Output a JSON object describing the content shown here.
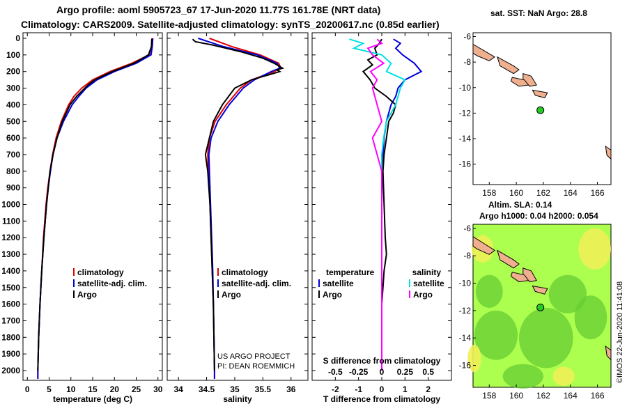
{
  "header": {
    "line1": "Argo profile: aoml 5905723_67 17-Jun-2020 11.77S 161.78E (NRT data)",
    "line2": "Climatology: CARS2009. Satellite-adjusted climatology: synTS_20200617.nc (0.85d earlier)"
  },
  "colors": {
    "clim": "#e00000",
    "sat": "#0000dd",
    "argo": "#000000",
    "sat_s": "#00e0e0",
    "argo_s": "#ff00ff",
    "map_sea": "#adff4f",
    "land": "#f0b090",
    "dot": "#22cc22"
  },
  "depth_ticks": [
    "0",
    "100",
    "200",
    "300",
    "400",
    "500",
    "600",
    "700",
    "800",
    "900",
    "1000",
    "1100",
    "1200",
    "1300",
    "1400",
    "1500",
    "1600",
    "1700",
    "1800",
    "1900",
    "2000"
  ],
  "credits": {
    "line1": "US ARGO PROJECT",
    "line2": "PI: DEAN ROEMMICH"
  },
  "sst_map": {
    "title": "sat. SST: NaN Argo: 28.8"
  },
  "sla_map": {
    "title1": "Altim. SLA: 0.14",
    "title2": "Argo h1000: 0.04 h2000: 0.054"
  },
  "map_axes": {
    "lat_ticks": [
      "-6",
      "-8",
      "-10",
      "-12",
      "-14",
      "-16"
    ],
    "lon_ticks": [
      "158",
      "160",
      "162",
      "164",
      "166"
    ]
  },
  "watermark": "©IMOS 22-Jun-2020 11:41:08",
  "chart_data": [
    {
      "type": "line",
      "name": "temperature",
      "xlabel": "temperature (deg C)",
      "xlim": [
        -1,
        31
      ],
      "ylim": [
        2100,
        0
      ],
      "xticks": [
        "0",
        "5",
        "10",
        "15",
        "20",
        "25",
        "30"
      ],
      "legend": [
        "climatology",
        "satellite-adj. clim.",
        "Argo"
      ],
      "series": [
        {
          "name": "climatology",
          "depth": [
            0,
            50,
            100,
            150,
            200,
            250,
            300,
            350,
            400,
            500,
            600,
            700,
            800,
            900,
            1000,
            1200,
            1400,
            1600,
            1800,
            2000,
            2050
          ],
          "values": [
            28.6,
            28.5,
            28.0,
            24.0,
            19.0,
            15.0,
            12.5,
            10.7,
            9.5,
            7.8,
            6.6,
            5.8,
            5.2,
            4.7,
            4.3,
            3.7,
            3.3,
            2.9,
            2.6,
            2.4,
            2.4
          ]
        },
        {
          "name": "satellite-adj. clim.",
          "depth": [
            0,
            50,
            100,
            150,
            200,
            250,
            300,
            350,
            400,
            500,
            600,
            700,
            800,
            900,
            1000,
            1200,
            1400,
            1600,
            1800,
            2000,
            2050
          ],
          "values": [
            28.8,
            28.7,
            28.4,
            25.0,
            20.0,
            16.0,
            13.5,
            11.8,
            10.3,
            8.3,
            6.8,
            5.9,
            5.3,
            4.8,
            4.4,
            3.8,
            3.3,
            2.9,
            2.6,
            2.4,
            2.4
          ]
        },
        {
          "name": "Argo",
          "depth": [
            5,
            50,
            100,
            150,
            200,
            250,
            280,
            300,
            350,
            400,
            500,
            600,
            700,
            800,
            900,
            1000,
            1200,
            1400,
            1600,
            1800,
            2000
          ],
          "values": [
            28.6,
            28.5,
            27.8,
            24.5,
            19.5,
            15.5,
            14.0,
            13.2,
            11.3,
            9.8,
            8.0,
            6.8,
            5.9,
            5.2,
            4.8,
            4.4,
            3.8,
            3.3,
            2.9,
            2.6,
            2.4
          ]
        }
      ]
    },
    {
      "type": "line",
      "name": "salinity",
      "xlabel": "salinity",
      "xlim": [
        33.8,
        36.3
      ],
      "ylim": [
        2100,
        0
      ],
      "xticks": [
        "34",
        "34.5",
        "35",
        "35.5",
        "36"
      ],
      "legend": [
        "climatology",
        "satellite-adj. clim.",
        "Argo"
      ],
      "series": [
        {
          "name": "climatology",
          "depth": [
            0,
            50,
            100,
            150,
            180,
            200,
            250,
            300,
            400,
            500,
            600,
            700,
            800,
            1000,
            1200,
            1400,
            1600,
            1800,
            2000,
            2050
          ],
          "values": [
            34.55,
            34.95,
            35.45,
            35.78,
            35.82,
            35.7,
            35.3,
            35.1,
            34.85,
            34.65,
            34.55,
            34.52,
            34.53,
            34.56,
            34.58,
            34.6,
            34.62,
            34.63,
            34.64,
            34.64
          ]
        },
        {
          "name": "satellite-adj. clim.",
          "depth": [
            0,
            50,
            100,
            150,
            180,
            200,
            250,
            300,
            400,
            500,
            600,
            700,
            800,
            1000,
            1200,
            1400,
            1600,
            1800,
            2000,
            2050
          ],
          "values": [
            34.35,
            34.8,
            35.4,
            35.75,
            35.8,
            35.65,
            35.35,
            35.15,
            34.9,
            34.7,
            34.58,
            34.54,
            34.55,
            34.57,
            34.59,
            34.61,
            34.62,
            34.63,
            34.64,
            34.64
          ]
        },
        {
          "name": "Argo",
          "depth": [
            5,
            20,
            40,
            60,
            80,
            100,
            120,
            150,
            180,
            190,
            200,
            220,
            250,
            300,
            400,
            500,
            600,
            700,
            800,
            1000,
            1200,
            1400,
            1600,
            1800,
            2000
          ],
          "values": [
            34.25,
            34.3,
            34.6,
            34.85,
            35.1,
            35.3,
            35.5,
            35.7,
            35.85,
            35.75,
            35.8,
            35.6,
            35.3,
            35.0,
            34.78,
            34.62,
            34.55,
            34.48,
            34.52,
            34.56,
            34.58,
            34.6,
            34.62,
            34.63,
            34.64
          ]
        }
      ]
    },
    {
      "type": "line",
      "name": "difference",
      "xlabel": "T difference from climatology",
      "xlabel_top": "S difference from climatology",
      "xlim": [
        -3,
        3
      ],
      "ylim": [
        2100,
        0
      ],
      "xticks": [
        "-2",
        "-1",
        "0",
        "1",
        "2"
      ],
      "xticks_s": [
        "-0.5",
        "-0.25",
        "0",
        "0.25",
        "0.5"
      ],
      "legend_titles": [
        "temperature",
        "salinity"
      ],
      "legend": [
        "satellite",
        "Argo",
        "satellite",
        "Argo"
      ],
      "series": [
        {
          "name": "T satellite",
          "depth": [
            5,
            30,
            60,
            100,
            150,
            200,
            250,
            300,
            350,
            400,
            450,
            500,
            600,
            700,
            800,
            1000,
            1200,
            1500,
            2000
          ],
          "values": [
            0.5,
            0.8,
            0.6,
            0.9,
            1.4,
            1.7,
            1.0,
            0.7,
            0.6,
            0.4,
            0.3,
            0.2,
            0.1,
            0.05,
            0.02,
            0.0,
            0.0,
            0.0,
            0.0
          ]
        },
        {
          "name": "T Argo",
          "depth": [
            5,
            30,
            60,
            100,
            130,
            160,
            200,
            250,
            300,
            350,
            400,
            450,
            500,
            600,
            700,
            800,
            1000,
            1200,
            1300,
            1400,
            1500,
            1600,
            1800,
            2000
          ],
          "values": [
            0.0,
            -0.1,
            -0.3,
            -0.2,
            -0.6,
            -0.4,
            -0.8,
            -0.5,
            -0.3,
            0.2,
            0.6,
            0.5,
            0.3,
            0.2,
            0.1,
            0.05,
            0.1,
            0.15,
            0.2,
            0.1,
            0.05,
            0.0,
            0.0,
            0.0
          ]
        },
        {
          "name": "S satellite",
          "depth": [
            5,
            30,
            60,
            100,
            150,
            200,
            250,
            300,
            400,
            500,
            600,
            700,
            800,
            1000,
            1500,
            2000
          ],
          "values": [
            -0.35,
            -0.2,
            -0.3,
            0.0,
            0.1,
            0.05,
            0.25,
            0.2,
            0.15,
            0.05,
            0.02,
            0.0,
            0.0,
            0.0,
            0.0,
            0.0
          ]
        },
        {
          "name": "S Argo",
          "depth": [
            5,
            30,
            60,
            100,
            150,
            200,
            250,
            300,
            400,
            500,
            600,
            700,
            800,
            1000,
            1500,
            2000
          ],
          "values": [
            -0.05,
            0.0,
            -0.15,
            -0.1,
            0.02,
            -0.12,
            -0.05,
            -0.1,
            -0.05,
            0.0,
            -0.1,
            -0.05,
            0.0,
            0.0,
            0.0,
            0.0
          ]
        }
      ]
    }
  ]
}
